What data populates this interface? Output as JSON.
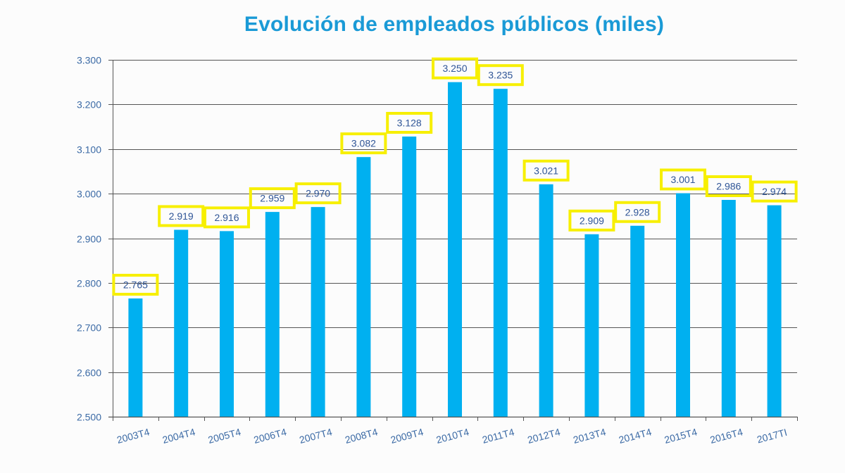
{
  "chart_data": {
    "type": "bar",
    "title": "Evolución de empleados públicos (miles)",
    "xlabel": "",
    "ylabel": "",
    "ylim": [
      2500,
      3300
    ],
    "ytick_step": 100,
    "yticks": [
      "2.500",
      "2.600",
      "2.700",
      "2.800",
      "2.900",
      "3.000",
      "3.100",
      "3.200",
      "3.300"
    ],
    "grid": true,
    "legend": "none",
    "categories": [
      "2003T4",
      "2004T4",
      "2005T4",
      "2006T4",
      "2007T4",
      "2008T4",
      "2009T4",
      "2010T4",
      "2011T4",
      "2012T4",
      "2013T4",
      "2014T4",
      "2015T4",
      "2016T4",
      "2017TI"
    ],
    "values": [
      2765,
      2919,
      2916,
      2959,
      2970,
      3082,
      3128,
      3250,
      3235,
      3021,
      2909,
      2928,
      3001,
      2986,
      2974
    ],
    "data_labels": [
      "2.765",
      "2.919",
      "2.916",
      "2.959",
      "2.970",
      "3.082",
      "3.128",
      "3.250",
      "3.235",
      "3.021",
      "2.909",
      "2.928",
      "3.001",
      "2.986",
      "2.974"
    ],
    "colors": {
      "bar": "#00b0f0",
      "label_border": "#f7ef00",
      "label_text": "#2f5597",
      "axis_text": "#3b6aa5",
      "gridline": "#555555",
      "title": "#1a9ad6"
    }
  }
}
